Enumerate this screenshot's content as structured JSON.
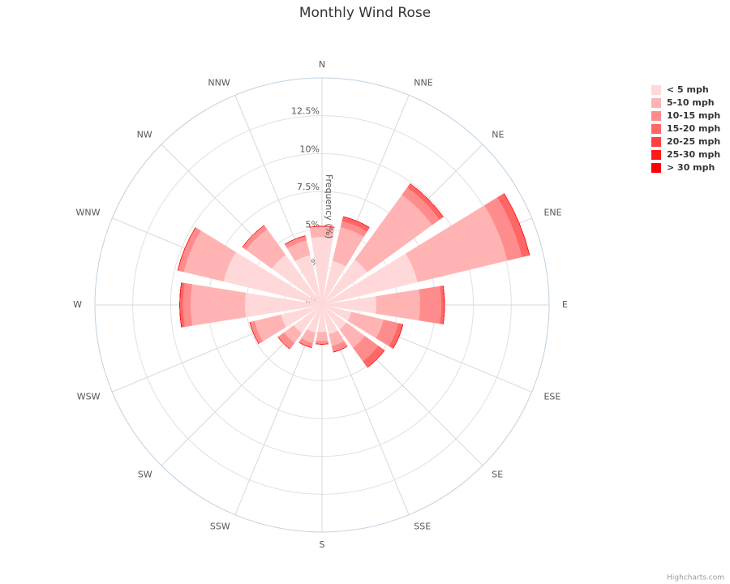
{
  "chart_data": {
    "type": "windrose",
    "title": "Monthly Wind Rose",
    "y_axis_title": "Frequency (%)",
    "credits": "Highcharts.com",
    "categories": [
      "N",
      "NNE",
      "NE",
      "ENE",
      "E",
      "ESE",
      "SE",
      "SSE",
      "S",
      "SSW",
      "SW",
      "WSW",
      "W",
      "WNW",
      "NW",
      "NNW"
    ],
    "ylim": [
      0,
      15
    ],
    "yticks": [
      {
        "value": 0,
        "label": "0%"
      },
      {
        "value": 2.5,
        "label": "2.5%"
      },
      {
        "value": 5,
        "label": "5%"
      },
      {
        "value": 7.5,
        "label": "7.5%"
      },
      {
        "value": 10,
        "label": "10%"
      },
      {
        "value": 12.5,
        "label": "12.5%"
      }
    ],
    "legend_position": "top-right",
    "series": [
      {
        "name": "< 5 mph",
        "color": "#ffd9d9",
        "values": [
          4.5,
          3.0,
          3.7,
          6.5,
          3.6,
          2.0,
          2.0,
          2.0,
          1.8,
          1.9,
          2.3,
          2.8,
          5.1,
          6.7,
          4.1,
          3.4
        ]
      },
      {
        "name": "5-10 mph",
        "color": "#ffb3b3",
        "values": [
          0.7,
          2.3,
          5.3,
          6.1,
          2.9,
          2.2,
          1.5,
          0.8,
          0.6,
          0.7,
          0.8,
          1.8,
          3.6,
          2.7,
          2.1,
          1.0
        ]
      },
      {
        "name": "10-15 mph",
        "color": "#ff8c8c",
        "values": [
          0,
          0.4,
          0.6,
          1.0,
          1.4,
          1.0,
          1.1,
          0.4,
          0.2,
          0.3,
          0.5,
          0.3,
          0.5,
          0.4,
          0.3,
          0.3
        ]
      },
      {
        "name": "15-20 mph",
        "color": "#ff6666",
        "values": [
          0,
          0.3,
          0.3,
          0.5,
          0.2,
          0.3,
          0.5,
          0,
          0,
          0,
          0,
          0,
          0.2,
          0,
          0,
          0
        ]
      },
      {
        "name": "20-25 mph",
        "color": "#ff4040",
        "values": [
          0,
          0,
          0,
          0,
          0,
          0,
          0,
          0,
          0,
          0,
          0,
          0,
          0,
          0,
          0,
          0
        ]
      },
      {
        "name": "25-30 mph",
        "color": "#ff1a1a",
        "values": [
          0,
          0,
          0,
          0,
          0,
          0,
          0,
          0,
          0,
          0,
          0,
          0,
          0,
          0,
          0,
          0
        ]
      },
      {
        "name": "> 30 mph",
        "color": "#ff0000",
        "values": [
          0,
          0,
          0,
          0,
          0,
          0,
          0,
          0,
          0,
          0,
          0,
          0,
          0,
          0,
          0,
          0
        ]
      }
    ]
  }
}
